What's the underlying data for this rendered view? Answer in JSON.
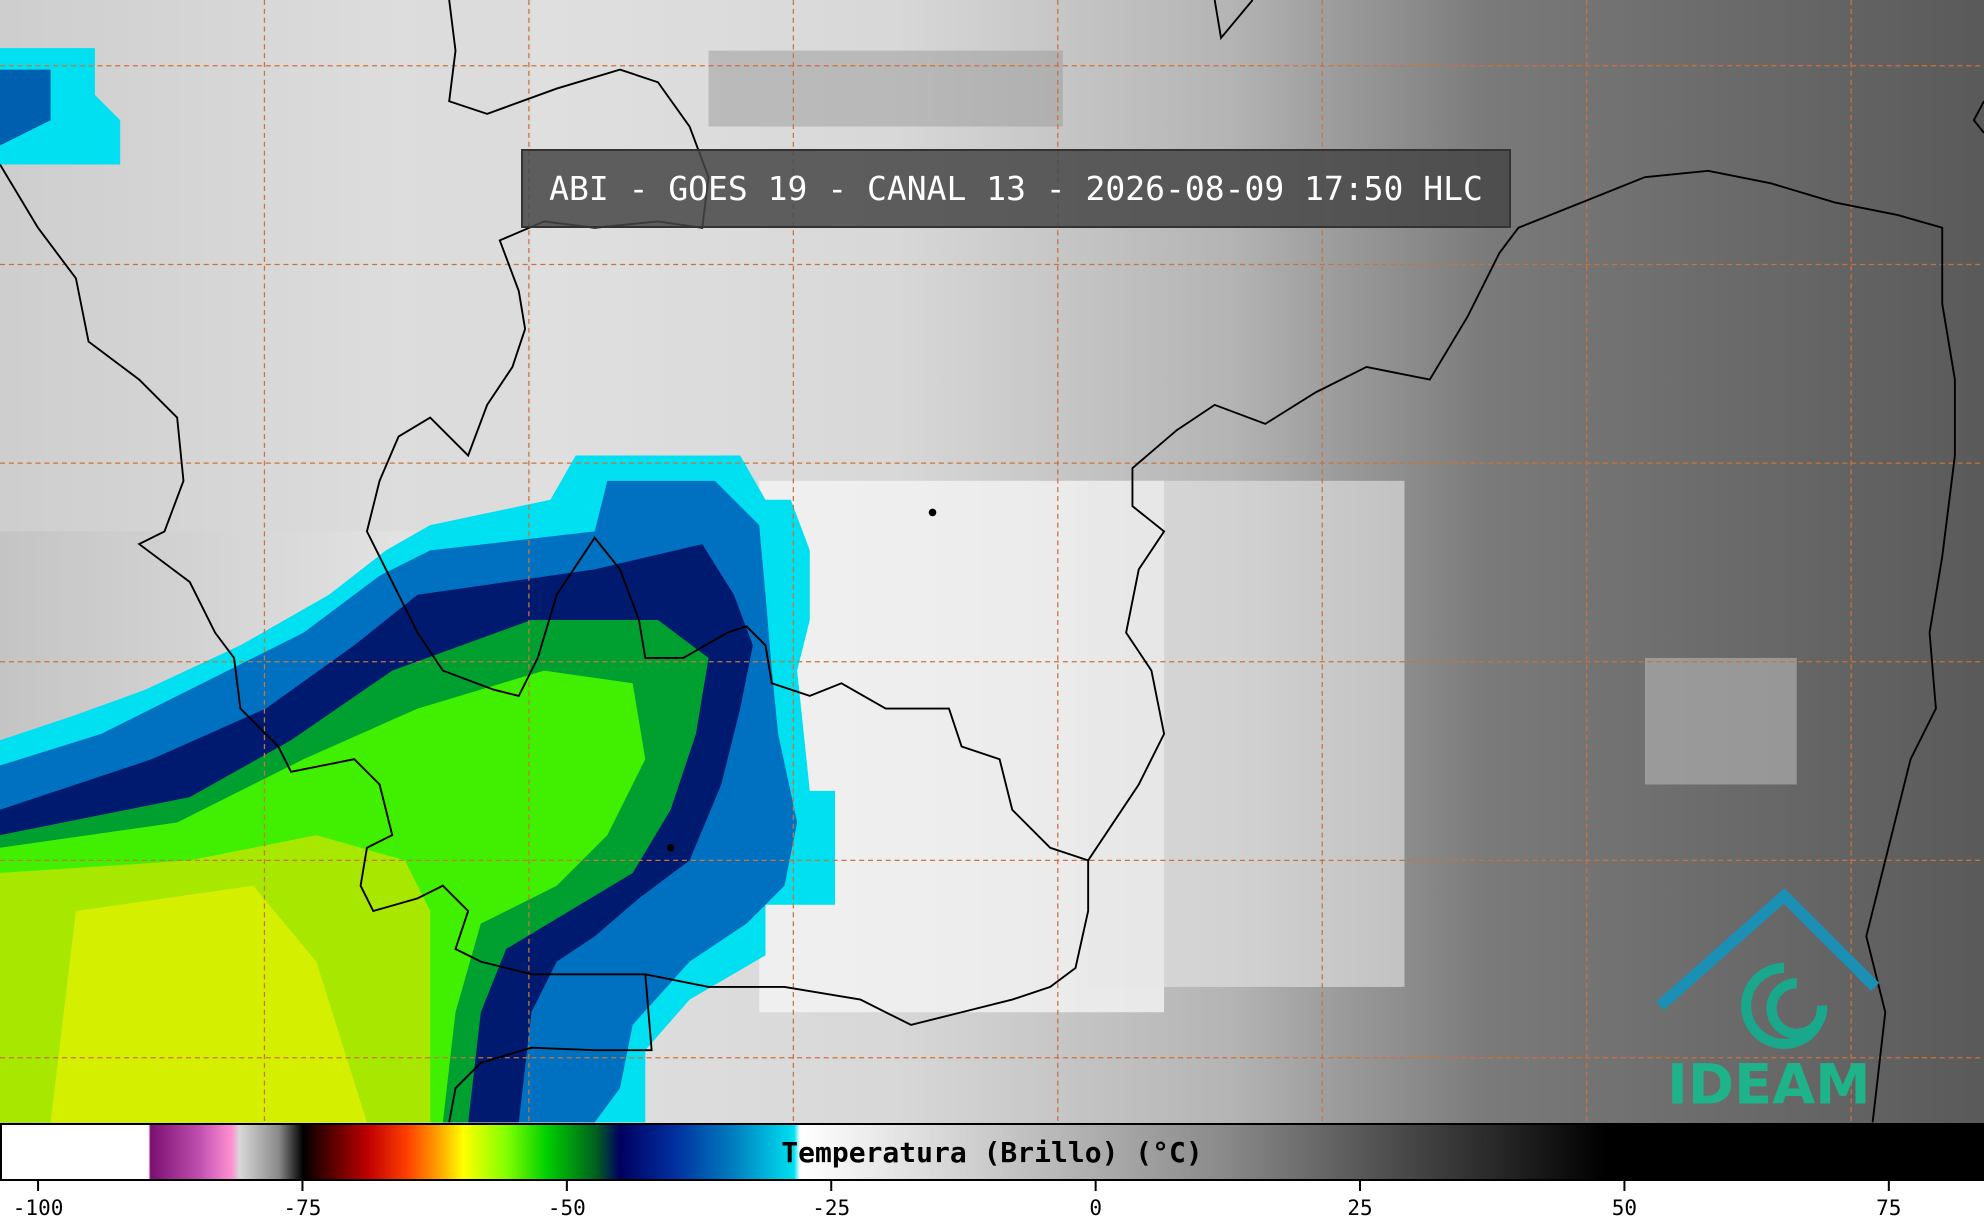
{
  "title": "ABI - GOES 19 - CANAL 13 - 2026-08-09 17:50 HLC",
  "colorbar": {
    "label": "Temperatura (Brillo) (°C)",
    "lim": [
      -103.6,
      84
    ],
    "ticks": [
      -100,
      -75,
      -50,
      -25,
      0,
      25,
      50,
      75
    ]
  },
  "logo": "IDEAM"
}
